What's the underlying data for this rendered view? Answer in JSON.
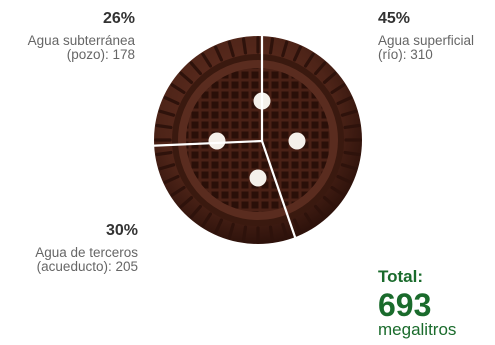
{
  "chart_data": {
    "type": "pie",
    "slices": [
      {
        "percent_label": "26%",
        "label_line1": "Agua subterránea",
        "label_line2": "(pozo): 178",
        "value": 178,
        "color": "#5a2c1f"
      },
      {
        "percent_label": "45%",
        "label_line1": "Agua superficial",
        "label_line2": "(río): 310",
        "value": 310,
        "color": "#5a2c1f"
      },
      {
        "percent_label": "30%",
        "label_line1": "Agua de terceros",
        "label_line2": "(acueducto): 205",
        "value": 205,
        "color": "#5a2c1f"
      }
    ],
    "total": {
      "title": "Total:",
      "value": "693",
      "unit": "megalitros"
    }
  },
  "colors": {
    "cookie": "#4e2418",
    "cookie_dark": "#2e120b",
    "separator": "#ffffff",
    "cream": "#f4f0ea",
    "total_green": "#1a6b2c"
  }
}
